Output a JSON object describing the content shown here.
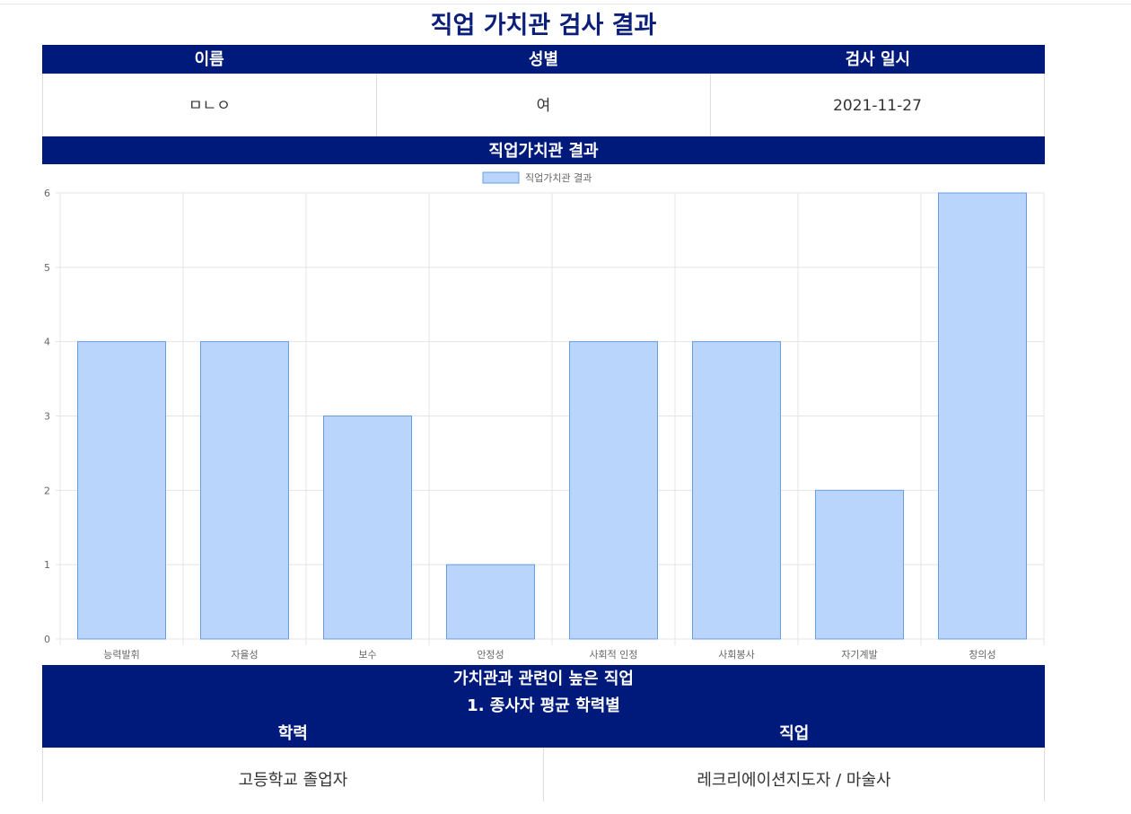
{
  "page": {
    "title": "직업 가치관 검사 결과"
  },
  "info": {
    "headers": [
      "이름",
      "성별",
      "검사 일시"
    ],
    "values": [
      "ㅁㄴㅇ",
      "여",
      "2021-11-27"
    ]
  },
  "chart_section": {
    "title": "직업가치관 결과"
  },
  "chart_data": {
    "type": "bar",
    "title": "",
    "legend": "top",
    "categories": [
      "능력발휘",
      "자율성",
      "보수",
      "안정성",
      "사회적 인정",
      "사회봉사",
      "자기계발",
      "창의성"
    ],
    "series": [
      {
        "name": "직업가치관 결과",
        "values": [
          4,
          4,
          3,
          1,
          4,
          4,
          2,
          6
        ]
      }
    ],
    "ylim": [
      0,
      6
    ],
    "yticks": [
      0,
      1,
      2,
      3,
      4,
      5,
      6
    ],
    "grid": true,
    "colors": {
      "fill": "#bad5fc",
      "stroke": "#6a9de0",
      "grid": "#e4e4e4",
      "axis_text": "#666666"
    }
  },
  "related": {
    "title": "가치관과 관련이 높은 직업",
    "subtitle": "1. 종사자 평균 학력별",
    "col_headers": [
      "학력",
      "직업"
    ],
    "row": [
      "고등학교 졸업자",
      "레크리에이션지도자 / 마술사"
    ]
  }
}
